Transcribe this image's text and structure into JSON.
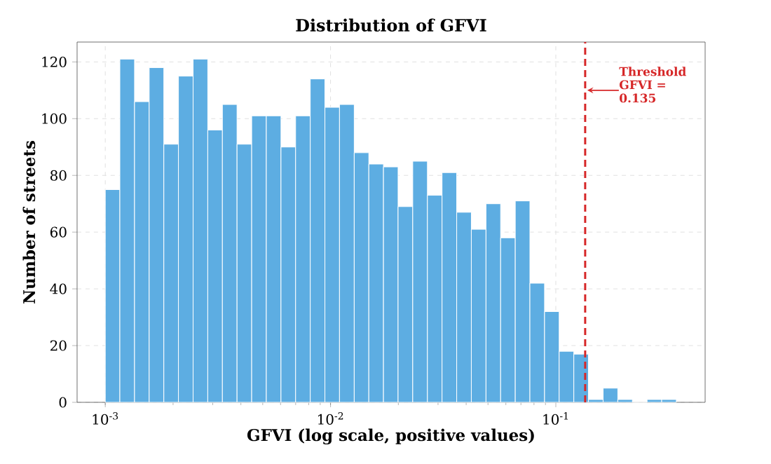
{
  "chart_data": {
    "type": "histogram",
    "title": "Distribution of GFVI",
    "xlabel": "GFVI (log scale, positive values)",
    "ylabel": "Number of streets",
    "bins": [
      0.001,
      0.001161,
      0.001349,
      0.001567,
      0.00182,
      0.002113,
      0.002455,
      0.002851,
      0.003311,
      0.003846,
      0.004467,
      0.005188,
      0.006026,
      0.006998,
      0.008128,
      0.009441,
      0.01096,
      0.01274,
      0.01479,
      0.01718,
      0.01995,
      0.02317,
      0.02692,
      0.03126,
      0.03631,
      0.04217,
      0.04898,
      0.05689,
      0.06607,
      0.07674,
      0.08913,
      0.1035,
      0.1202,
      0.1396,
      0.1622,
      0.1884,
      0.2188,
      0.2541,
      0.2951,
      0.3428
    ],
    "values": [
      75,
      121,
      106,
      118,
      91,
      115,
      121,
      96,
      105,
      91,
      101,
      101,
      90,
      101,
      114,
      104,
      105,
      88,
      84,
      83,
      69,
      85,
      73,
      81,
      67,
      61,
      70,
      58,
      71,
      42,
      32,
      18,
      17,
      1,
      5,
      1,
      0,
      1,
      1
    ],
    "color": "#5dade2",
    "log": "x",
    "grid": true,
    "xlim": [
      0.00075,
      0.46
    ],
    "ylim": [
      0,
      127
    ],
    "xticks": [
      {
        "value": 0.001,
        "label": "10$^{-3}$"
      },
      {
        "value": 0.01,
        "label": "10$^{-2}$"
      },
      {
        "value": 0.1,
        "label": "10$^{-1}$"
      }
    ],
    "yticks": [
      0,
      20,
      40,
      60,
      80,
      100,
      120
    ],
    "ref_lines": [
      {
        "axis": "x",
        "value": 0.135,
        "color": "#d62728",
        "line_style": "dashed"
      }
    ],
    "annotations": [
      {
        "text": "Threshold GFVI = 0.135",
        "x": 0.135,
        "y": 110
      }
    ]
  }
}
